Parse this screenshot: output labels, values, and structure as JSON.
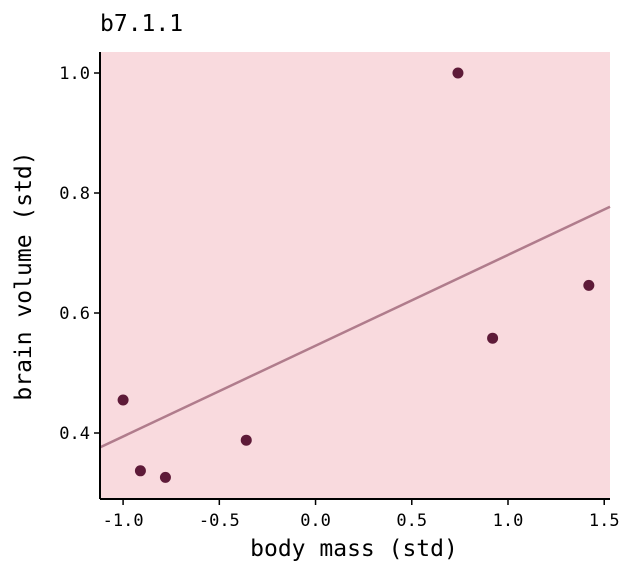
{
  "chart_data": {
    "type": "scatter",
    "title": "b7.1.1",
    "xlabel": "body mass (std)",
    "ylabel": "brain volume (std)",
    "xlim": [
      -1.12,
      1.53
    ],
    "ylim": [
      0.29,
      1.035
    ],
    "x_ticks": [
      -1.0,
      -0.5,
      0.0,
      0.5,
      1.0,
      1.5
    ],
    "x_tick_labels": [
      "-1.0",
      "-0.5",
      "0.0",
      "0.5",
      "1.0",
      "1.5"
    ],
    "y_ticks": [
      0.4,
      0.6,
      0.8,
      1.0
    ],
    "y_tick_labels": [
      "0.4",
      "0.6",
      "0.8",
      "1.0"
    ],
    "grid": false,
    "series": [
      {
        "type": "scatter",
        "x": [
          -1.0,
          -0.91,
          -0.78,
          -0.36,
          0.74,
          0.92,
          1.42
        ],
        "y": [
          0.455,
          0.337,
          0.326,
          0.388,
          1.0,
          0.558,
          0.646
        ]
      },
      {
        "type": "line",
        "x": [
          -1.12,
          1.53
        ],
        "y": [
          0.376,
          0.777
        ]
      }
    ]
  },
  "colors": {
    "plot_background": "#f9dade",
    "points": "#5e1a38",
    "fit_line": "#b07c8c",
    "axes": "#000000"
  }
}
